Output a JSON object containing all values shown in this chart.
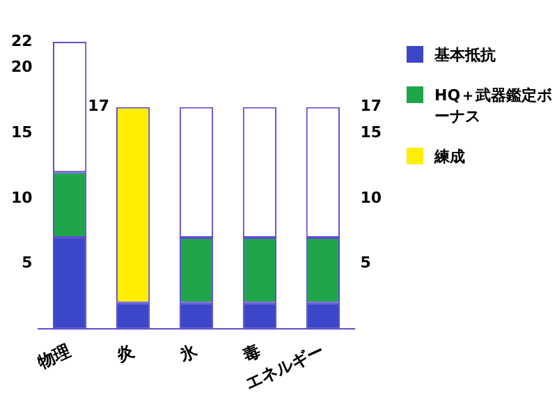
{
  "chart_data": {
    "type": "bar",
    "stacked": true,
    "categories": [
      "物理",
      "炎",
      "氷",
      "毒",
      "エネルギー"
    ],
    "series": [
      {
        "name": "基本抵抗",
        "color": "#3c46c8",
        "values": [
          7,
          2,
          2,
          2,
          2
        ]
      },
      {
        "name": "HQ＋武器鑑定ボーナス",
        "color": "#1fa64a",
        "values": [
          5,
          0,
          5,
          5,
          5
        ]
      },
      {
        "name": "練成",
        "color": "#ffee00",
        "values": [
          0,
          15,
          0,
          0,
          0
        ]
      },
      {
        "color": "#ffffff",
        "values": [
          10,
          0,
          10,
          10,
          10
        ]
      }
    ],
    "ylim": [
      0,
      22
    ],
    "yticks": [
      5,
      10,
      15,
      20,
      22
    ],
    "y2lim": [
      0,
      22
    ],
    "y2ticks": [
      5,
      10,
      15,
      17
    ],
    "annotations": [
      {
        "text": "17",
        "x": "炎",
        "y": 17
      }
    ],
    "grid": false,
    "legend": "right"
  }
}
